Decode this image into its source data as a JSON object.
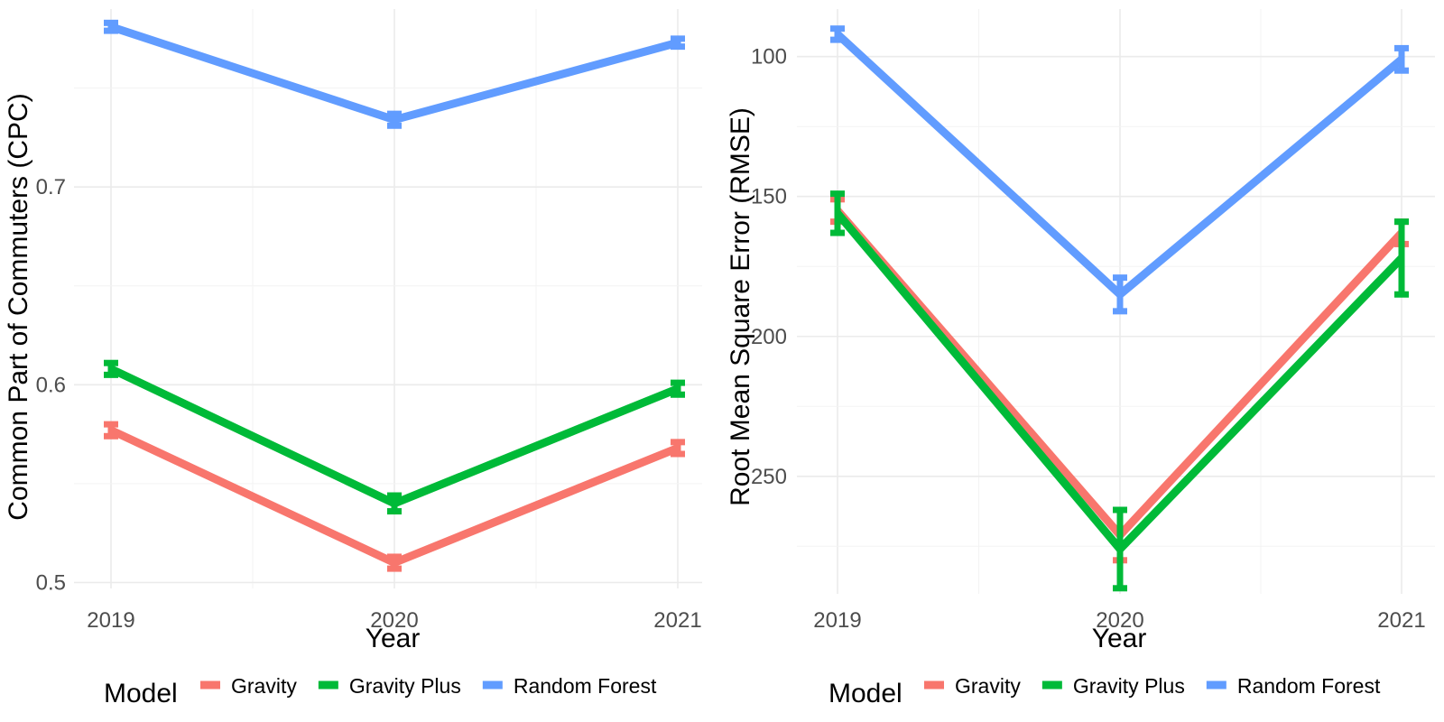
{
  "chart_data": [
    {
      "type": "line",
      "xlabel": "Year",
      "ylabel": "Common Part of Commuters (CPC)",
      "x": [
        "2019",
        "2020",
        "2021"
      ],
      "ylim": [
        0.497,
        0.79
      ],
      "yticks": [
        0.5,
        0.6,
        0.7
      ],
      "ytick_labels": [
        "0.5",
        "0.6",
        "0.7"
      ],
      "reverse_y": false,
      "legend_title": "Model",
      "legend_position": "bottom",
      "grid": true,
      "series": [
        {
          "name": "Gravity",
          "color": "#F8766D",
          "values": [
            0.577,
            0.51,
            0.568
          ],
          "err": [
            0.003,
            0.003,
            0.003
          ]
        },
        {
          "name": "Gravity Plus",
          "color": "#00BA38",
          "values": [
            0.608,
            0.54,
            0.598
          ],
          "err": [
            0.003,
            0.004,
            0.003
          ]
        },
        {
          "name": "Random Forest",
          "color": "#619CFF",
          "values": [
            0.781,
            0.734,
            0.773
          ],
          "err": [
            0.002,
            0.003,
            0.002
          ]
        }
      ]
    },
    {
      "type": "line",
      "xlabel": "Year",
      "ylabel": "Root Mean Square Error (RMSE)",
      "x": [
        "2019",
        "2020",
        "2021"
      ],
      "ylim": [
        292,
        83
      ],
      "yticks": [
        100,
        150,
        200,
        250
      ],
      "ytick_labels": [
        "100",
        "150",
        "200",
        "250"
      ],
      "reverse_y": true,
      "legend_title": "Model",
      "legend_position": "bottom",
      "grid": true,
      "series": [
        {
          "name": "Gravity",
          "color": "#F8766D",
          "values": [
            155,
            271,
            163
          ],
          "err": [
            4,
            9,
            4
          ]
        },
        {
          "name": "Gravity Plus",
          "color": "#00BA38",
          "values": [
            156,
            276,
            172
          ],
          "err": [
            7,
            14,
            13
          ]
        },
        {
          "name": "Random Forest",
          "color": "#619CFF",
          "values": [
            92,
            185,
            101
          ],
          "err": [
            2,
            6,
            4
          ]
        }
      ]
    }
  ]
}
